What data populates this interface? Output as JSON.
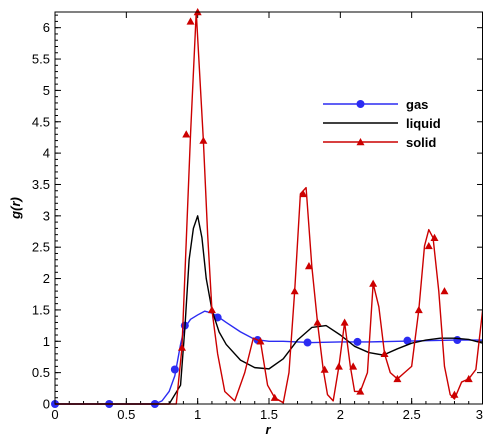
{
  "chart_data": {
    "type": "line",
    "xlabel": "r",
    "ylabel": "g(r)",
    "xlim": [
      0,
      3
    ],
    "ylim": [
      0,
      6.25
    ],
    "xticks": [
      "0",
      "0.5",
      "1",
      "1.5",
      "2",
      "2.5",
      "3"
    ],
    "yticks": [
      "0",
      "0.5",
      "1",
      "1.5",
      "2",
      "2.5",
      "3",
      "3.5",
      "4",
      "4.5",
      "5",
      "5.5",
      "6"
    ],
    "grid": false,
    "legend_position": "top-right",
    "series": [
      {
        "name": "gas",
        "color": "#2b2bf2",
        "marker": "circle",
        "x": [
          0,
          0.1,
          0.2,
          0.3,
          0.4,
          0.5,
          0.6,
          0.7,
          0.75,
          0.8,
          0.84,
          0.86,
          0.88,
          0.9,
          0.92,
          0.95,
          1.0,
          1.05,
          1.1,
          1.15,
          1.2,
          1.3,
          1.4,
          1.5,
          1.6,
          1.8,
          2.0,
          2.2,
          2.4,
          2.6,
          2.8,
          3.0
        ],
        "y": [
          0,
          0,
          0,
          0,
          0,
          0,
          0,
          0,
          0.05,
          0.2,
          0.45,
          0.7,
          0.95,
          1.15,
          1.25,
          1.35,
          1.42,
          1.48,
          1.45,
          1.38,
          1.3,
          1.15,
          1.03,
          1.0,
          1.0,
          0.98,
          0.99,
          0.99,
          1.0,
          1.01,
          1.02,
          1.02
        ],
        "marker_x": [
          0,
          0.38,
          0.7,
          0.84,
          0.91,
          1.14,
          1.42,
          1.77,
          2.12,
          2.47,
          2.82
        ],
        "marker_y": [
          0,
          0,
          0,
          0.55,
          1.25,
          1.38,
          1.02,
          0.98,
          0.99,
          1.01,
          1.02
        ]
      },
      {
        "name": "liquid",
        "color": "#000000",
        "marker": "none",
        "x": [
          0,
          0.8,
          0.88,
          0.91,
          0.94,
          0.97,
          1.0,
          1.03,
          1.06,
          1.1,
          1.15,
          1.2,
          1.3,
          1.4,
          1.5,
          1.6,
          1.7,
          1.8,
          1.9,
          2.0,
          2.1,
          2.2,
          2.3,
          2.4,
          2.5,
          2.6,
          2.7,
          2.8,
          2.9,
          3.0
        ],
        "y": [
          0,
          0,
          0.3,
          1.2,
          2.3,
          2.8,
          3.0,
          2.65,
          2.0,
          1.5,
          1.15,
          0.95,
          0.7,
          0.58,
          0.56,
          0.72,
          1.02,
          1.22,
          1.25,
          1.1,
          0.92,
          0.82,
          0.78,
          0.88,
          0.97,
          1.02,
          1.05,
          1.05,
          1.03,
          0.97
        ]
      },
      {
        "name": "solid",
        "color": "#cc0000",
        "marker": "triangle",
        "x": [
          0,
          0.7,
          0.85,
          0.89,
          0.92,
          0.95,
          0.99,
          1.04,
          1.07,
          1.1,
          1.14,
          1.19,
          1.26,
          1.33,
          1.39,
          1.44,
          1.49,
          1.54,
          1.6,
          1.64,
          1.68,
          1.72,
          1.76,
          1.8,
          1.84,
          1.88,
          1.91,
          1.95,
          1.99,
          2.03,
          2.07,
          2.1,
          2.14,
          2.19,
          2.23,
          2.27,
          2.31,
          2.35,
          2.4,
          2.45,
          2.5,
          2.55,
          2.59,
          2.62,
          2.65,
          2.69,
          2.73,
          2.77,
          2.8,
          2.85,
          2.9,
          2.95,
          3.0
        ],
        "y": [
          0,
          0,
          0,
          0.9,
          2.6,
          4.3,
          6.25,
          4.2,
          2.7,
          1.5,
          0.8,
          0.2,
          0.05,
          0.5,
          1.05,
          1.0,
          0.3,
          0.1,
          0.02,
          0.5,
          1.8,
          3.35,
          3.45,
          2.2,
          1.3,
          0.55,
          0.15,
          0.05,
          0.6,
          1.3,
          0.6,
          0.2,
          0.2,
          0.5,
          1.92,
          1.55,
          0.8,
          0.5,
          0.4,
          0.5,
          0.6,
          1.5,
          2.52,
          2.78,
          2.65,
          1.8,
          0.6,
          0.15,
          0.08,
          0.35,
          0.4,
          0.55,
          1.55
        ],
        "marker_x": [
          0.89,
          0.92,
          0.95,
          1.0,
          1.04,
          1.1,
          1.44,
          1.54,
          1.68,
          1.74,
          1.78,
          1.84,
          1.89,
          1.99,
          2.03,
          2.09,
          2.14,
          2.23,
          2.31,
          2.4,
          2.55,
          2.62,
          2.66,
          2.73,
          2.8,
          2.9
        ],
        "marker_y": [
          0.9,
          4.3,
          6.1,
          6.25,
          4.2,
          1.5,
          1.0,
          0.1,
          1.8,
          3.35,
          2.2,
          1.3,
          0.55,
          0.6,
          1.3,
          0.6,
          0.2,
          1.92,
          0.8,
          0.4,
          1.5,
          2.52,
          2.65,
          1.8,
          0.15,
          0.4
        ]
      }
    ]
  }
}
